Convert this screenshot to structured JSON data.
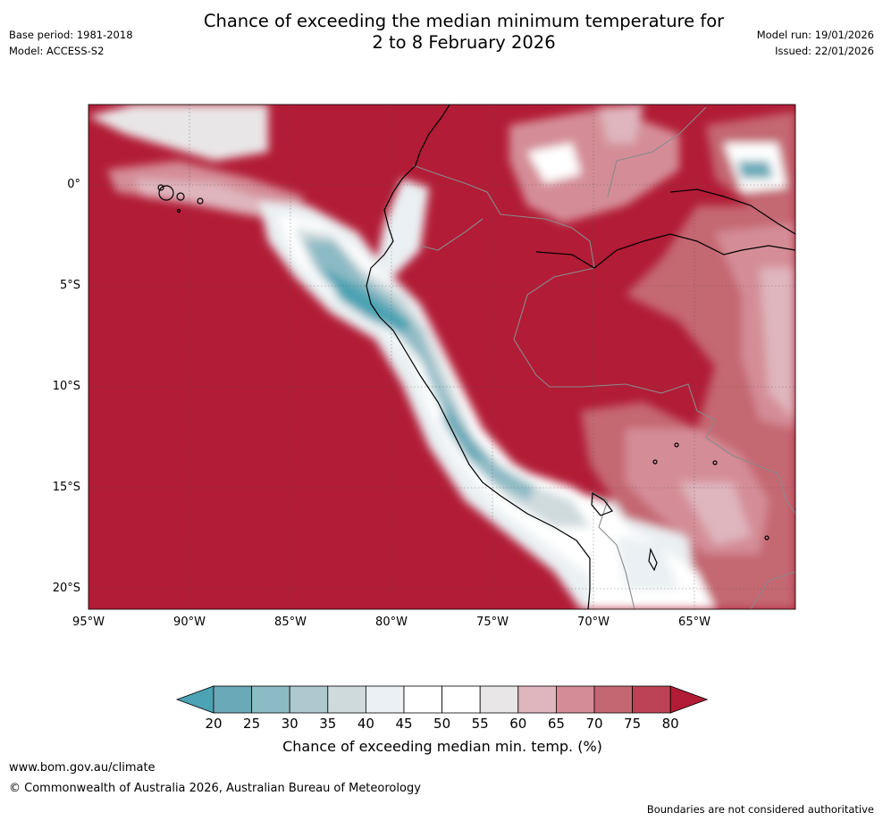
{
  "header": {
    "title_line1": "Chance of exceeding the median minimum temperature for",
    "title_line2": "2 to 8 February 2026",
    "base_period": "Base period: 1981-2018",
    "model": "Model: ACCESS-S2",
    "model_run": "Model run: 19/01/2026",
    "issued": "Issued: 22/01/2026"
  },
  "map": {
    "lat_labels": [
      "0°",
      "5°S",
      "10°S",
      "15°S",
      "20°S"
    ],
    "lon_labels": [
      "95°W",
      "90°W",
      "85°W",
      "80°W",
      "75°W",
      "70°W",
      "65°W"
    ],
    "lat_range": [
      -21,
      4
    ],
    "lon_range": [
      -95,
      -60
    ],
    "colors": {
      "ocean_warm": "#b21c36",
      "cool_max": "#4ba3b3",
      "border": "#888888",
      "coast": "#000000"
    }
  },
  "colorbar": {
    "label": "Chance of exceeding median min. temp. (%)",
    "ticks": [
      "20",
      "25",
      "30",
      "35",
      "40",
      "45",
      "50",
      "55",
      "60",
      "65",
      "70",
      "75",
      "80"
    ],
    "low_extend_color": "#4ba3b3",
    "high_extend_color": "#b21c36",
    "bins": [
      "#6aaab8",
      "#8cbac5",
      "#adc9cf",
      "#cfdadd",
      "#eaf0f3",
      "#ffffff",
      "#ffffff",
      "#e9e6e7",
      "#dfb6bd",
      "#d48d97",
      "#c46772",
      "#bb4355"
    ]
  },
  "footer": {
    "website": "www.bom.gov.au/climate",
    "copyright": "© Commonwealth of Australia 2026, Australian Bureau of Meteorology",
    "disclaimer": "Boundaries are not considered authoritative"
  }
}
